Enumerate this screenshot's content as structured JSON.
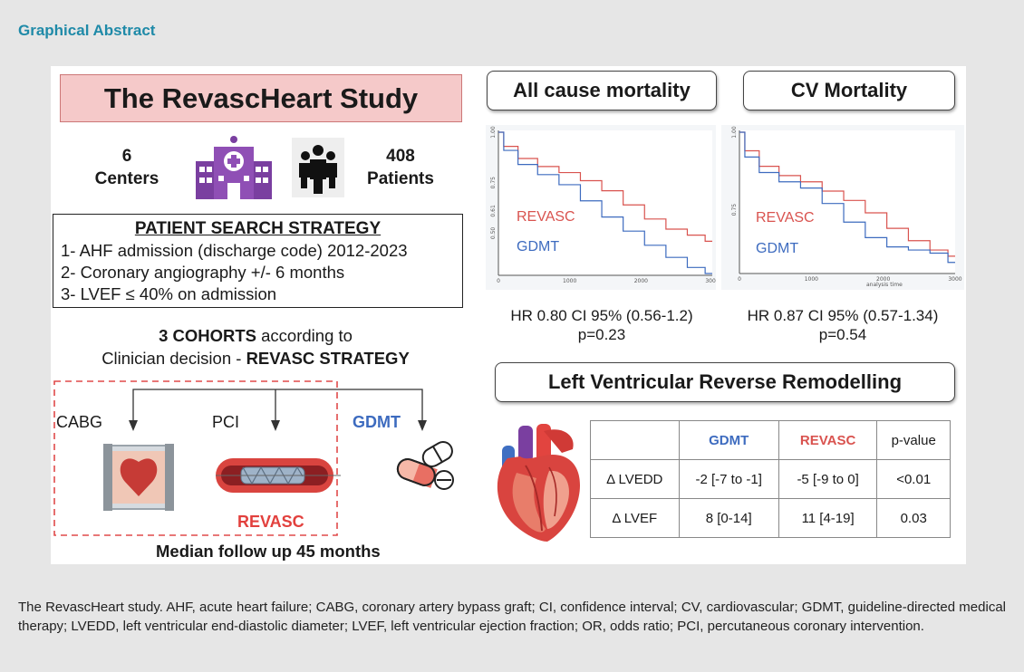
{
  "header": {
    "title": "Graphical Abstract"
  },
  "study": {
    "title": "The RevascHeart Study",
    "centers_count": "6",
    "centers_label": "Centers",
    "patients_count": "408",
    "patients_label": "Patients"
  },
  "search": {
    "title": "PATIENT SEARCH STRATEGY",
    "items": [
      "1- AHF admission (discharge code) 2012-2023",
      "2- Coronary angiography +/- 6 months",
      "3- LVEF ≤ 40% on admission"
    ]
  },
  "cohorts": {
    "line1_bold": "3 COHORTS",
    "line1_rest": " according to",
    "line2_start": "Clinician decision - ",
    "line2_bold": "REVASC STRATEGY",
    "cabg": "CABG",
    "pci": "PCI",
    "gdmt": "GDMT",
    "revasc": "REVASC",
    "followup": "Median follow up 45 months"
  },
  "colors": {
    "revasc": "#d9534f",
    "gdmt": "#3d6bbf",
    "title_teal": "#1f8aa8",
    "study_bg": "#f5c9c9"
  },
  "chart_data": [
    {
      "type": "line",
      "title": "All cause mortality",
      "x_ticks": [
        "0",
        "1000",
        "2000",
        "3000"
      ],
      "y_ticks": [
        "1.00",
        "0.75",
        "0.61",
        "0.50"
      ],
      "xlim": [
        0,
        3000
      ],
      "series": [
        {
          "name": "REVASC",
          "color": "#d9534f",
          "x": [
            0,
            150,
            400,
            700,
            1000,
            1300,
            1600,
            1900,
            2200,
            2500,
            2800,
            3000
          ],
          "y": [
            1.0,
            0.93,
            0.87,
            0.83,
            0.8,
            0.76,
            0.71,
            0.64,
            0.57,
            0.52,
            0.49,
            0.46
          ]
        },
        {
          "name": "GDMT",
          "color": "#3d6bbf",
          "x": [
            0,
            150,
            400,
            700,
            1000,
            1300,
            1600,
            1900,
            2200,
            2500,
            2800,
            3000
          ],
          "y": [
            1.0,
            0.91,
            0.84,
            0.79,
            0.74,
            0.66,
            0.58,
            0.51,
            0.44,
            0.38,
            0.33,
            0.3
          ]
        }
      ],
      "hr_line": "HR 0.80 CI 95% (0.56-1.2)",
      "p_line": "p=0.23"
    },
    {
      "type": "line",
      "title": "CV Mortality",
      "x_ticks": [
        "0",
        "1000",
        "2000",
        "3000"
      ],
      "y_ticks": [
        "1.00",
        "0.75"
      ],
      "xlabel": "analysis time",
      "xlim": [
        0,
        3000
      ],
      "series": [
        {
          "name": "REVASC",
          "color": "#d9534f",
          "x": [
            0,
            150,
            400,
            700,
            1000,
            1300,
            1600,
            1900,
            2200,
            2500,
            2800,
            3000
          ],
          "y": [
            1.0,
            0.94,
            0.89,
            0.86,
            0.84,
            0.81,
            0.78,
            0.74,
            0.69,
            0.65,
            0.62,
            0.6
          ]
        },
        {
          "name": "GDMT",
          "color": "#3d6bbf",
          "x": [
            0,
            150,
            400,
            700,
            1000,
            1300,
            1600,
            1900,
            2200,
            2500,
            2800,
            3000
          ],
          "y": [
            1.0,
            0.92,
            0.87,
            0.84,
            0.82,
            0.77,
            0.71,
            0.66,
            0.63,
            0.62,
            0.61,
            0.58
          ]
        }
      ],
      "hr_line": "HR 0.87 CI 95% (0.57-1.34)",
      "p_line": "p=0.54"
    }
  ],
  "remodelling": {
    "title": "Left Ventricular Reverse Remodelling",
    "headers": [
      "",
      "GDMT",
      "REVASC",
      "p-value"
    ],
    "rows": [
      [
        "Δ LVEDD",
        "-2 [-7 to -1]",
        "-5 [-9 to 0]",
        "<0.01"
      ],
      [
        "Δ LVEF",
        "8 [0-14]",
        "11 [4-19]",
        "0.03"
      ]
    ]
  },
  "icons": [
    "hospital-icon",
    "people-icon",
    "pills-icon",
    "heart-icon",
    "cabg-graft-icon",
    "stent-icon"
  ],
  "caption": "The RevascHeart study. AHF, acute heart failure; CABG, coronary artery bypass graft; CI, confidence interval; CV, cardiovascular; GDMT, guideline-directed medical therapy; LVEDD, left ventricular end-diastolic diameter; LVEF, left ventricular ejection fraction; OR, odds ratio; PCI, percutaneous coronary intervention."
}
